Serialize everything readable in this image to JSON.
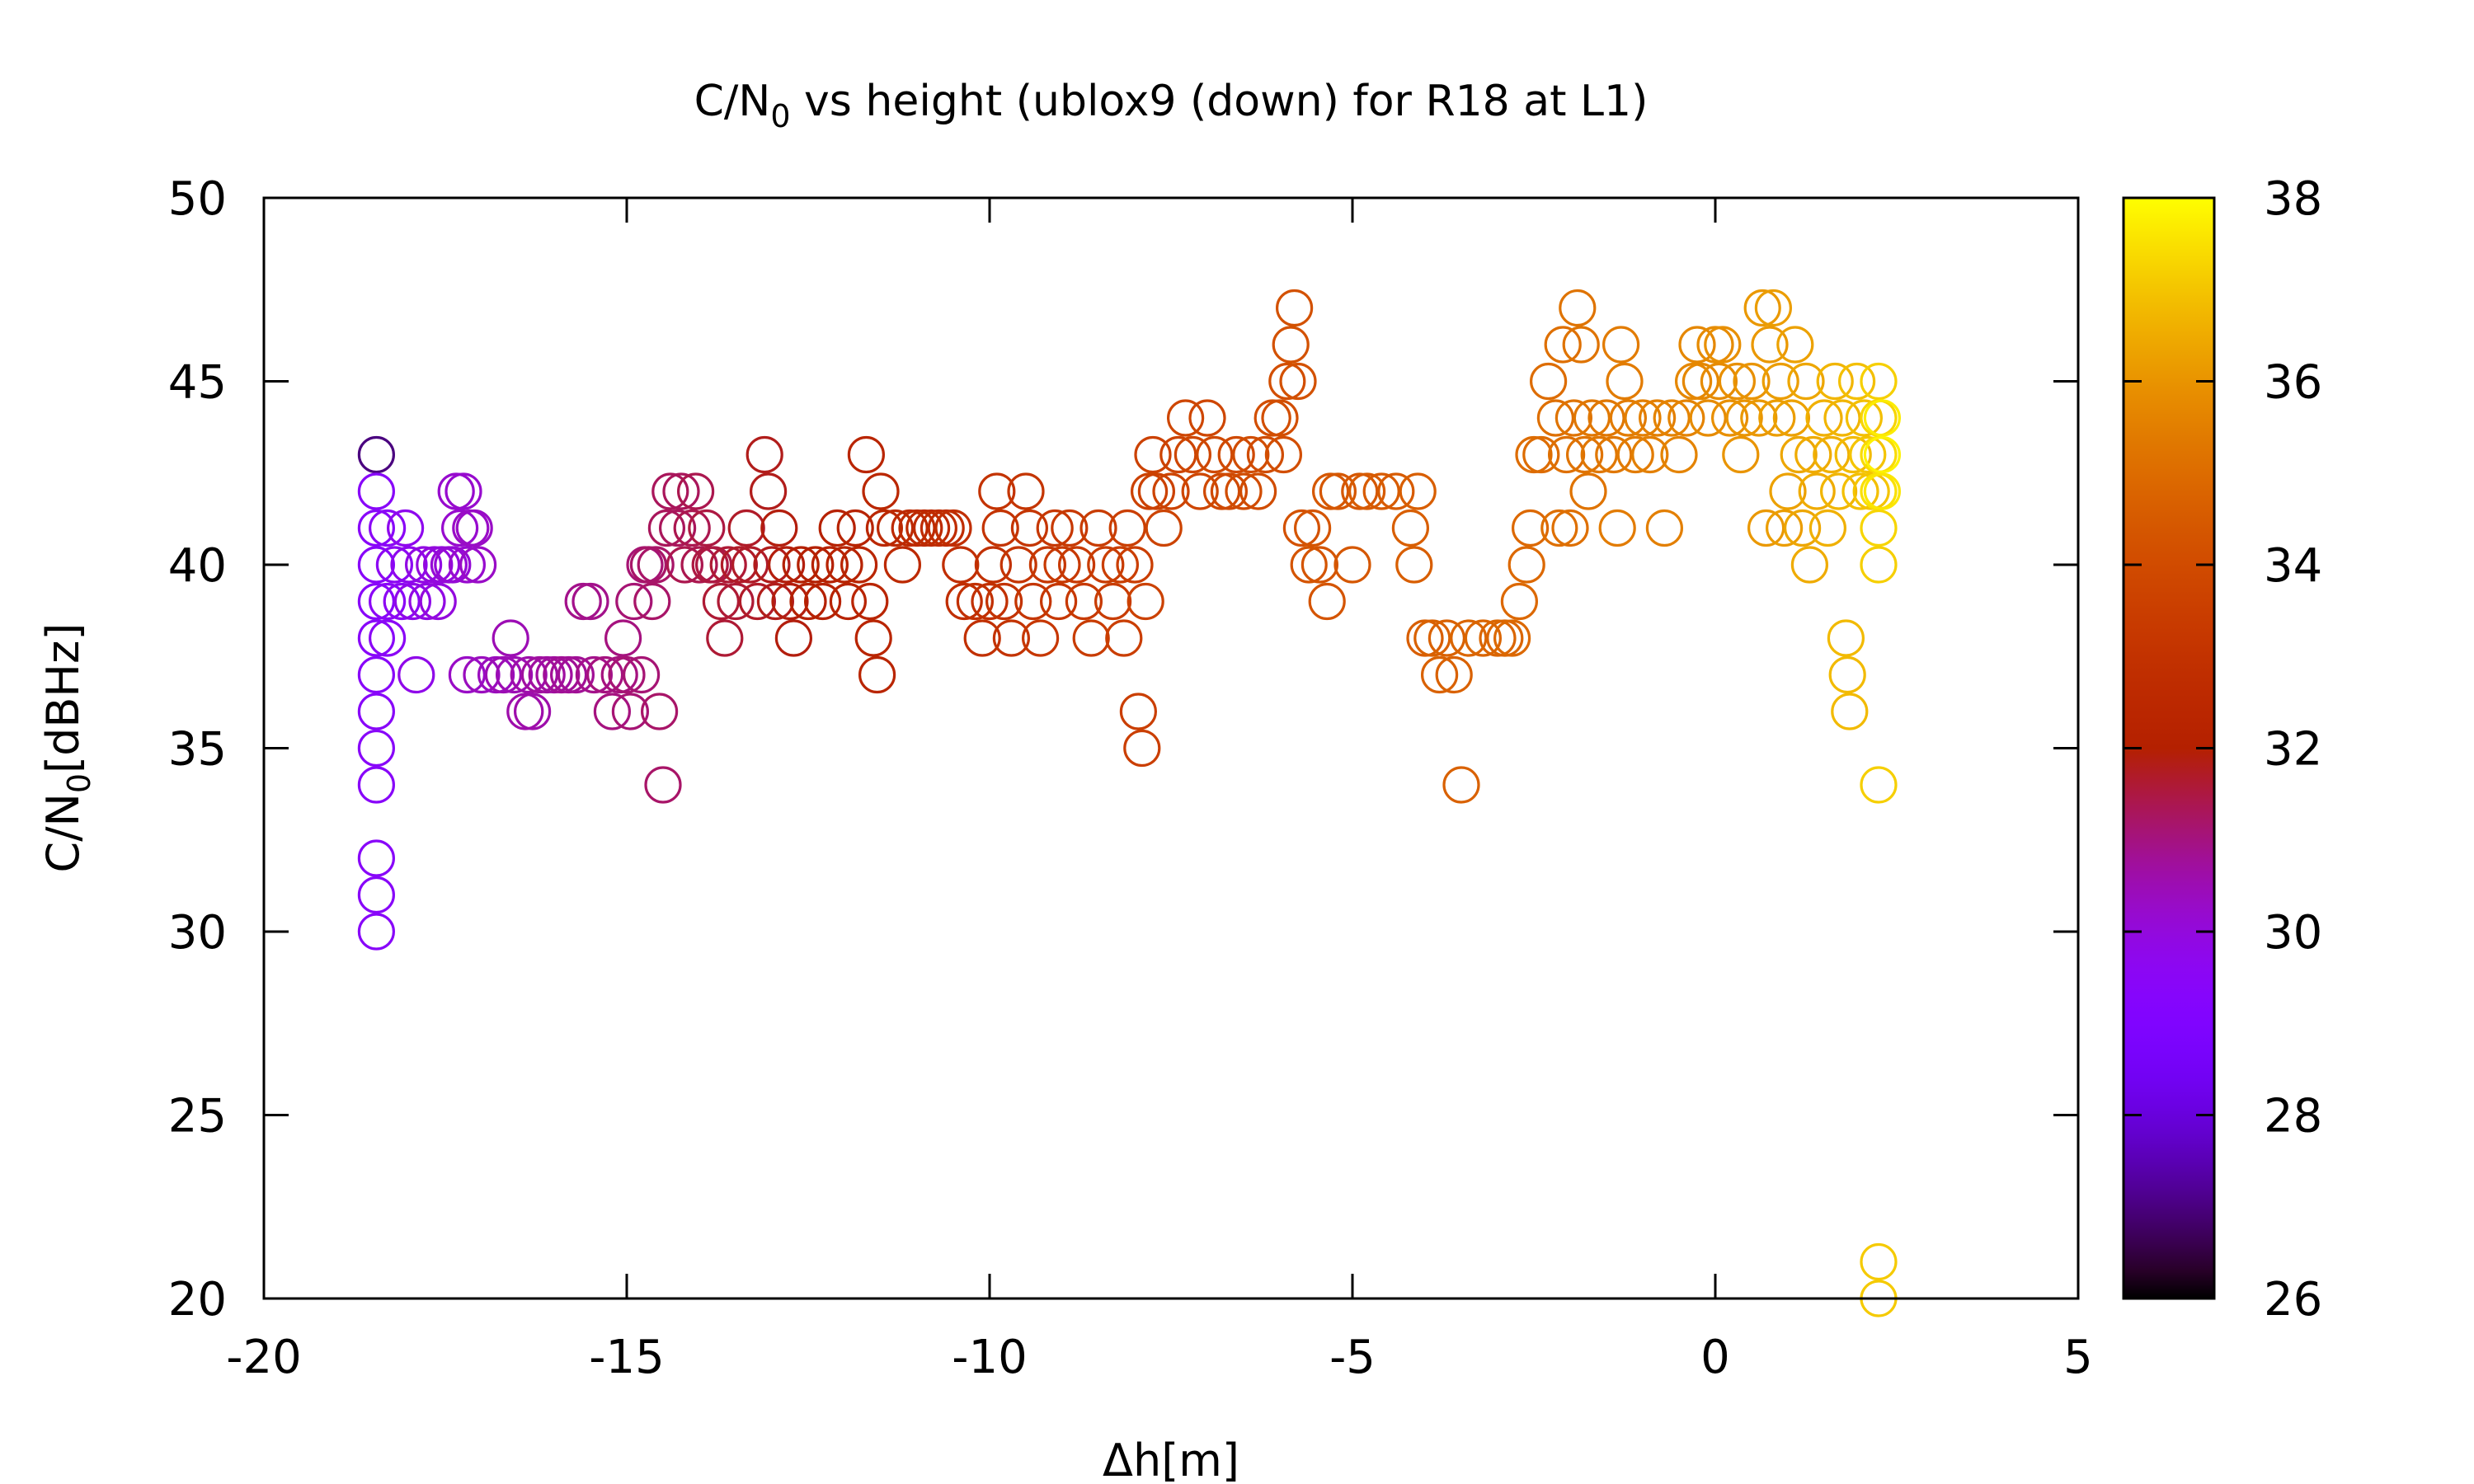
{
  "chart_data": {
    "type": "scatter",
    "title_main": "C/N",
    "title_sub": "0",
    "title_rest": " vs height (ublox9 (down) for R18 at L1)",
    "xlabel": "Δh[m]",
    "ylabel_main": "C/N",
    "ylabel_sub": "0",
    "ylabel_rest": "[dBHz]",
    "xlim": [
      -20,
      5
    ],
    "ylim": [
      20,
      50
    ],
    "xticks": [
      "-20",
      "-15",
      "-10",
      "-5",
      "0",
      "5"
    ],
    "yticks": [
      "20",
      "25",
      "30",
      "35",
      "40",
      "45",
      "50"
    ],
    "colorbar": {
      "range": [
        26,
        38
      ],
      "ticks": [
        "26",
        "28",
        "30",
        "32",
        "34",
        "36",
        "38"
      ],
      "palette": "gnuplot rgbformulae 7,5,15 (black-purple-red-orange-yellow)"
    },
    "marker": "open circle",
    "grid": false,
    "legend": "none",
    "points": [
      [
        -18.45,
        43,
        27
      ],
      [
        -18.45,
        42,
        29.4
      ],
      [
        -18.45,
        41,
        29.4
      ],
      [
        -18.45,
        40,
        29.4
      ],
      [
        -18.45,
        39,
        29.4
      ],
      [
        -18.45,
        38,
        29.4
      ],
      [
        -18.45,
        37,
        29.4
      ],
      [
        -18.45,
        36,
        29.4
      ],
      [
        -18.45,
        35,
        29.4
      ],
      [
        -18.45,
        34,
        29.4
      ],
      [
        -18.45,
        32,
        29.4
      ],
      [
        -18.45,
        31,
        29.4
      ],
      [
        -18.45,
        30,
        29.4
      ],
      [
        -18.3,
        41,
        29.5
      ],
      [
        -18.3,
        39,
        29.5
      ],
      [
        -18.3,
        38,
        29.5
      ],
      [
        -18.2,
        40,
        29.6
      ],
      [
        -18.1,
        39,
        29.6
      ],
      [
        -18.05,
        41,
        29.7
      ],
      [
        -18.0,
        40,
        29.7
      ],
      [
        -17.95,
        39,
        29.8
      ],
      [
        -17.9,
        37,
        29.8
      ],
      [
        -17.8,
        40,
        29.9
      ],
      [
        -17.75,
        39,
        29.9
      ],
      [
        -17.65,
        40,
        30.0
      ],
      [
        -17.6,
        39,
        30.0
      ],
      [
        -17.55,
        40,
        30.0
      ],
      [
        -17.45,
        40,
        30.1
      ],
      [
        -17.4,
        40,
        30.1
      ],
      [
        -17.35,
        42,
        30.2
      ],
      [
        -17.3,
        41,
        30.2
      ],
      [
        -17.25,
        42,
        30.2
      ],
      [
        -17.2,
        40,
        30.2
      ],
      [
        -17.15,
        41,
        30.3
      ],
      [
        -17.1,
        41,
        30.3
      ],
      [
        -17.05,
        40,
        30.3
      ],
      [
        -17.2,
        37,
        30.3
      ],
      [
        -17.0,
        37,
        30.4
      ],
      [
        -16.8,
        37,
        30.4
      ],
      [
        -16.7,
        37,
        30.5
      ],
      [
        -16.6,
        38,
        30.5
      ],
      [
        -16.55,
        37,
        30.5
      ],
      [
        -16.4,
        36,
        30.6
      ],
      [
        -16.35,
        37,
        30.6
      ],
      [
        -16.3,
        36,
        30.6
      ],
      [
        -16.2,
        37,
        30.7
      ],
      [
        -16.1,
        37,
        30.7
      ],
      [
        -16.0,
        37,
        30.7
      ],
      [
        -15.9,
        37,
        30.8
      ],
      [
        -15.8,
        37,
        30.8
      ],
      [
        -15.7,
        37,
        30.8
      ],
      [
        -15.6,
        39,
        30.9
      ],
      [
        -15.5,
        39,
        30.9
      ],
      [
        -15.45,
        37,
        30.9
      ],
      [
        -15.3,
        37,
        31.0
      ],
      [
        -15.2,
        36,
        31.0
      ],
      [
        -15.1,
        37,
        31.0
      ],
      [
        -15.05,
        38,
        31.0
      ],
      [
        -15.0,
        37,
        31.1
      ],
      [
        -14.95,
        36,
        31.1
      ],
      [
        -14.9,
        39,
        31.1
      ],
      [
        -14.8,
        37,
        31.1
      ],
      [
        -14.75,
        40,
        31.1
      ],
      [
        -14.7,
        40,
        31.2
      ],
      [
        -14.65,
        39,
        31.2
      ],
      [
        -14.6,
        40,
        31.2
      ],
      [
        -14.55,
        36,
        31.2
      ],
      [
        -14.5,
        34,
        31.2
      ],
      [
        -14.45,
        41,
        31.3
      ],
      [
        -14.4,
        42,
        31.3
      ],
      [
        -14.3,
        41,
        31.3
      ],
      [
        -14.25,
        42,
        31.3
      ],
      [
        -14.2,
        40,
        31.4
      ],
      [
        -14.1,
        41,
        31.4
      ],
      [
        -14.05,
        42,
        31.4
      ],
      [
        -14.0,
        40,
        31.4
      ],
      [
        -13.9,
        41,
        31.5
      ],
      [
        -13.85,
        40,
        31.5
      ],
      [
        -13.8,
        40,
        31.5
      ],
      [
        -13.7,
        39,
        31.6
      ],
      [
        -13.65,
        38,
        31.6
      ],
      [
        -13.6,
        40,
        31.6
      ],
      [
        -13.5,
        39,
        31.6
      ],
      [
        -13.45,
        40,
        31.7
      ],
      [
        -13.35,
        41,
        31.7
      ],
      [
        -13.3,
        40,
        31.7
      ],
      [
        -13.2,
        39,
        31.7
      ],
      [
        -13.1,
        43,
        31.8
      ],
      [
        -13.05,
        42,
        31.8
      ],
      [
        -13.0,
        40,
        31.8
      ],
      [
        -12.95,
        39,
        31.8
      ],
      [
        -12.9,
        41,
        31.9
      ],
      [
        -12.8,
        40,
        31.9
      ],
      [
        -12.75,
        39,
        31.9
      ],
      [
        -12.7,
        38,
        31.9
      ],
      [
        -12.6,
        40,
        32.0
      ],
      [
        -12.5,
        39,
        32.0
      ],
      [
        -12.4,
        40,
        32.0
      ],
      [
        -12.3,
        39,
        32.1
      ],
      [
        -12.2,
        40,
        32.1
      ],
      [
        -12.1,
        41,
        32.1
      ],
      [
        -12.0,
        40,
        32.2
      ],
      [
        -11.95,
        39,
        32.2
      ],
      [
        -11.85,
        41,
        32.2
      ],
      [
        -11.8,
        40,
        32.3
      ],
      [
        -11.7,
        43,
        32.3
      ],
      [
        -11.65,
        39,
        32.3
      ],
      [
        -11.6,
        38,
        32.3
      ],
      [
        -11.55,
        37,
        32.3
      ],
      [
        -11.5,
        42,
        32.4
      ],
      [
        -11.45,
        41,
        32.4
      ],
      [
        -11.3,
        41,
        32.5
      ],
      [
        -11.2,
        40,
        32.5
      ],
      [
        -11.1,
        41,
        32.5
      ],
      [
        -11.0,
        41,
        32.6
      ],
      [
        -10.9,
        41,
        32.6
      ],
      [
        -10.8,
        41,
        32.6
      ],
      [
        -10.7,
        41,
        32.7
      ],
      [
        -10.6,
        41,
        32.7
      ],
      [
        -10.5,
        41,
        32.8
      ],
      [
        -10.4,
        40,
        32.8
      ],
      [
        -10.35,
        39,
        32.8
      ],
      [
        -10.2,
        39,
        32.9
      ],
      [
        -10.1,
        38,
        32.9
      ],
      [
        -10.0,
        39,
        32.9
      ],
      [
        -9.95,
        40,
        32.9
      ],
      [
        -9.9,
        42,
        33.0
      ],
      [
        -9.85,
        41,
        33.0
      ],
      [
        -9.8,
        39,
        33.0
      ],
      [
        -9.7,
        38,
        33.0
      ],
      [
        -9.6,
        40,
        33.1
      ],
      [
        -9.5,
        42,
        33.1
      ],
      [
        -9.45,
        41,
        33.1
      ],
      [
        -9.4,
        39,
        33.1
      ],
      [
        -9.3,
        38,
        33.2
      ],
      [
        -9.2,
        40,
        33.2
      ],
      [
        -9.1,
        41,
        33.2
      ],
      [
        -9.05,
        39,
        33.2
      ],
      [
        -9.0,
        40,
        33.3
      ],
      [
        -8.9,
        41,
        33.3
      ],
      [
        -8.8,
        40,
        33.3
      ],
      [
        -8.7,
        39,
        33.3
      ],
      [
        -8.6,
        38,
        33.4
      ],
      [
        -8.5,
        41,
        33.4
      ],
      [
        -8.4,
        40,
        33.4
      ],
      [
        -8.3,
        39,
        33.4
      ],
      [
        -8.2,
        40,
        33.5
      ],
      [
        -8.15,
        38,
        33.5
      ],
      [
        -8.1,
        41,
        33.5
      ],
      [
        -8.0,
        40,
        33.5
      ],
      [
        -7.95,
        36,
        33.5
      ],
      [
        -7.9,
        35,
        33.5
      ],
      [
        -7.85,
        39,
        33.6
      ],
      [
        -7.8,
        42,
        33.6
      ],
      [
        -7.75,
        43,
        33.6
      ],
      [
        -7.7,
        42,
        33.6
      ],
      [
        -7.6,
        41,
        33.7
      ],
      [
        -7.5,
        42,
        33.7
      ],
      [
        -7.4,
        43,
        33.7
      ],
      [
        -7.3,
        44,
        33.8
      ],
      [
        -7.2,
        43,
        33.8
      ],
      [
        -7.1,
        42,
        33.8
      ],
      [
        -7.0,
        44,
        33.8
      ],
      [
        -6.9,
        43,
        33.9
      ],
      [
        -6.8,
        42,
        33.9
      ],
      [
        -6.7,
        42,
        33.9
      ],
      [
        -6.6,
        43,
        33.9
      ],
      [
        -6.5,
        42,
        34.0
      ],
      [
        -6.4,
        43,
        34.0
      ],
      [
        -6.3,
        42,
        34.0
      ],
      [
        -6.2,
        43,
        34.0
      ],
      [
        -6.1,
        44,
        34.1
      ],
      [
        -6.0,
        44,
        34.1
      ],
      [
        -5.95,
        43,
        34.1
      ],
      [
        -5.9,
        45,
        34.1
      ],
      [
        -5.85,
        46,
        34.2
      ],
      [
        -5.8,
        47,
        34.2
      ],
      [
        -5.75,
        45,
        34.2
      ],
      [
        -5.7,
        41,
        34.2
      ],
      [
        -5.6,
        40,
        34.3
      ],
      [
        -5.55,
        41,
        34.3
      ],
      [
        -5.45,
        40,
        34.3
      ],
      [
        -5.35,
        39,
        34.3
      ],
      [
        -5.3,
        42,
        34.4
      ],
      [
        -5.2,
        42,
        34.4
      ],
      [
        -5.0,
        40,
        34.4
      ],
      [
        -4.9,
        42,
        34.4
      ],
      [
        -4.8,
        42,
        34.5
      ],
      [
        -4.6,
        42,
        34.5
      ],
      [
        -4.4,
        42,
        34.5
      ],
      [
        -4.2,
        41,
        34.6
      ],
      [
        -4.15,
        40,
        34.6
      ],
      [
        -4.1,
        42,
        34.6
      ],
      [
        -4.0,
        38,
        34.6
      ],
      [
        -3.9,
        38,
        34.7
      ],
      [
        -3.8,
        37,
        34.7
      ],
      [
        -3.7,
        38,
        34.7
      ],
      [
        -3.6,
        37,
        34.7
      ],
      [
        -3.5,
        34,
        34.7
      ],
      [
        -3.4,
        38,
        34.8
      ],
      [
        -3.2,
        38,
        34.8
      ],
      [
        -3.0,
        38,
        34.8
      ],
      [
        -2.9,
        38,
        34.8
      ],
      [
        -2.8,
        38,
        34.9
      ],
      [
        -2.7,
        39,
        34.9
      ],
      [
        -2.6,
        40,
        34.9
      ],
      [
        -2.55,
        41,
        34.9
      ],
      [
        -2.5,
        43,
        35.0
      ],
      [
        -2.4,
        43,
        35.0
      ],
      [
        -2.3,
        45,
        35.0
      ],
      [
        -2.2,
        44,
        35.1
      ],
      [
        -2.15,
        41,
        35.1
      ],
      [
        -2.1,
        46,
        35.1
      ],
      [
        -2.05,
        43,
        35.1
      ],
      [
        -2.0,
        41,
        35.1
      ],
      [
        -1.95,
        44,
        35.2
      ],
      [
        -1.9,
        47,
        35.2
      ],
      [
        -1.85,
        46,
        35.2
      ],
      [
        -1.8,
        43,
        35.2
      ],
      [
        -1.75,
        42,
        35.2
      ],
      [
        -1.7,
        44,
        35.3
      ],
      [
        -1.6,
        43,
        35.3
      ],
      [
        -1.5,
        44,
        35.3
      ],
      [
        -1.4,
        43,
        35.3
      ],
      [
        -1.35,
        41,
        35.4
      ],
      [
        -1.3,
        46,
        35.4
      ],
      [
        -1.25,
        45,
        35.4
      ],
      [
        -1.2,
        44,
        35.4
      ],
      [
        -1.1,
        43,
        35.4
      ],
      [
        -1.0,
        44,
        35.5
      ],
      [
        -0.9,
        43,
        35.5
      ],
      [
        -0.8,
        44,
        35.5
      ],
      [
        -0.7,
        41,
        35.5
      ],
      [
        -0.6,
        44,
        35.6
      ],
      [
        -0.5,
        43,
        35.6
      ],
      [
        -0.4,
        44,
        35.6
      ],
      [
        -0.3,
        45,
        35.7
      ],
      [
        -0.25,
        46,
        35.7
      ],
      [
        -0.2,
        45,
        35.7
      ],
      [
        -0.1,
        44,
        35.8
      ],
      [
        0.0,
        46,
        35.8
      ],
      [
        0.05,
        45,
        35.8
      ],
      [
        0.1,
        46,
        35.9
      ],
      [
        0.2,
        44,
        35.9
      ],
      [
        0.3,
        45,
        35.9
      ],
      [
        0.35,
        43,
        36.0
      ],
      [
        0.4,
        44,
        36.0
      ],
      [
        0.5,
        45,
        36.0
      ],
      [
        0.6,
        44,
        36.1
      ],
      [
        0.65,
        47,
        36.1
      ],
      [
        0.7,
        41,
        36.1
      ],
      [
        0.75,
        46,
        36.1
      ],
      [
        0.8,
        47,
        36.2
      ],
      [
        0.85,
        44,
        36.2
      ],
      [
        0.9,
        45,
        36.2
      ],
      [
        0.95,
        41,
        36.2
      ],
      [
        1.0,
        42,
        36.3
      ],
      [
        1.05,
        44,
        36.3
      ],
      [
        1.1,
        46,
        36.3
      ],
      [
        1.15,
        43,
        36.4
      ],
      [
        1.2,
        41,
        36.4
      ],
      [
        1.25,
        45,
        36.4
      ],
      [
        1.3,
        40,
        36.5
      ],
      [
        1.35,
        43,
        36.5
      ],
      [
        1.4,
        42,
        36.5
      ],
      [
        1.5,
        44,
        36.6
      ],
      [
        1.55,
        41,
        36.6
      ],
      [
        1.6,
        43,
        36.6
      ],
      [
        1.65,
        45,
        36.7
      ],
      [
        1.7,
        42,
        36.7
      ],
      [
        1.75,
        44,
        36.7
      ],
      [
        1.8,
        38,
        36.8
      ],
      [
        1.82,
        37,
        36.8
      ],
      [
        1.85,
        36,
        36.8
      ],
      [
        1.9,
        43,
        36.8
      ],
      [
        1.95,
        45,
        36.9
      ],
      [
        2.0,
        42,
        36.9
      ],
      [
        2.05,
        44,
        36.9
      ],
      [
        2.1,
        43,
        37.0
      ],
      [
        2.15,
        42,
        37.0
      ],
      [
        2.25,
        45,
        37.2
      ],
      [
        2.25,
        44,
        37.3
      ],
      [
        2.25,
        43,
        37.4
      ],
      [
        2.25,
        42,
        37.5
      ],
      [
        2.25,
        41,
        37.3
      ],
      [
        2.25,
        40,
        37.2
      ],
      [
        2.25,
        34,
        37.2
      ],
      [
        2.25,
        21,
        37.1
      ],
      [
        2.25,
        20,
        37.1
      ],
      [
        2.3,
        44,
        37.7
      ],
      [
        2.3,
        43,
        37.8
      ],
      [
        2.3,
        42,
        37.6
      ]
    ]
  }
}
